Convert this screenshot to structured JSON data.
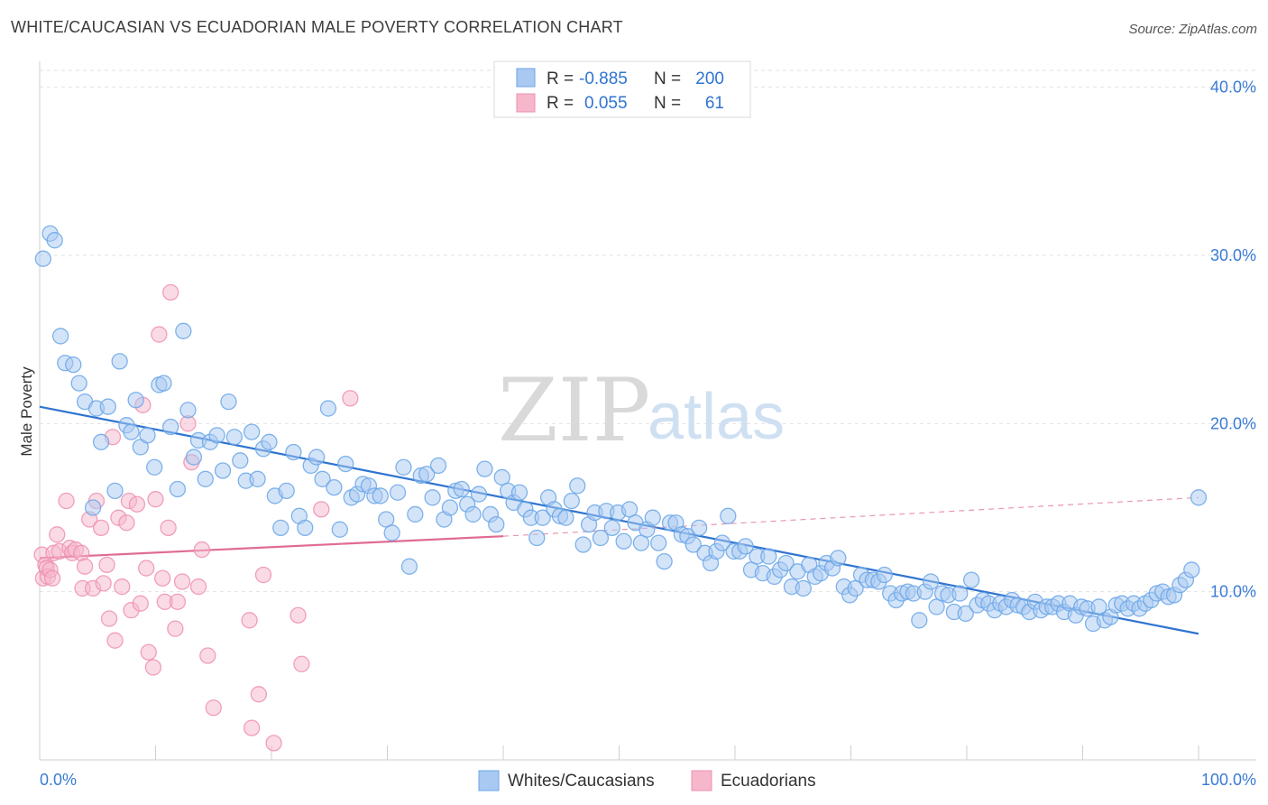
{
  "title": "WHITE/CAUCASIAN VS ECUADORIAN MALE POVERTY CORRELATION CHART",
  "source": "Source: ZipAtlas.com",
  "watermark": {
    "zip": "ZIP",
    "atlas": "atlas"
  },
  "legend_stats": [
    {
      "r_label": "R =",
      "r_value": "-0.885",
      "n_label": "N =",
      "n_value": "200",
      "color": "#a9c9f2"
    },
    {
      "r_label": "R =",
      "r_value": "0.055",
      "n_label": "N =",
      "n_value": "61",
      "color": "#f6b7cb"
    }
  ],
  "bottom_legend": [
    {
      "label": "Whites/Caucasians",
      "color": "#a9c9f2"
    },
    {
      "label": "Ecuadorians",
      "color": "#f6b7cb"
    }
  ],
  "chart_data": {
    "type": "scatter",
    "title": "WHITE/CAUCASIAN VS ECUADORIAN MALE POVERTY CORRELATION CHART",
    "xlabel": "",
    "ylabel": "Male Poverty",
    "xlim": [
      0,
      100
    ],
    "ylim": [
      0,
      41
    ],
    "x_tick_labels": [
      "0.0%",
      "100.0%"
    ],
    "y_ticks": [
      10,
      20,
      30,
      40
    ],
    "y_tick_labels": [
      "10.0%",
      "20.0%",
      "30.0%",
      "40.0%"
    ],
    "grid": true,
    "series": [
      {
        "name": "Whites/Caucasians",
        "color": "#6aa6e8",
        "fill": "#a9c9f2",
        "line_color": "#2f74d0",
        "trend": {
          "x": [
            0,
            100
          ],
          "y": [
            21.0,
            7.5
          ],
          "style": "solid"
        },
        "points": [
          [
            0.3,
            29.8
          ],
          [
            0.9,
            31.3
          ],
          [
            1.3,
            30.9
          ],
          [
            1.8,
            25.2
          ],
          [
            2.2,
            23.6
          ],
          [
            2.9,
            23.5
          ],
          [
            3.4,
            22.4
          ],
          [
            3.9,
            21.3
          ],
          [
            4.6,
            15.0
          ],
          [
            4.9,
            20.9
          ],
          [
            5.3,
            18.9
          ],
          [
            5.9,
            21.0
          ],
          [
            6.5,
            16.0
          ],
          [
            6.9,
            23.7
          ],
          [
            7.5,
            19.9
          ],
          [
            7.9,
            19.5
          ],
          [
            8.3,
            21.4
          ],
          [
            8.7,
            18.6
          ],
          [
            9.3,
            19.3
          ],
          [
            9.9,
            17.4
          ],
          [
            10.3,
            22.3
          ],
          [
            10.7,
            22.4
          ],
          [
            11.3,
            19.8
          ],
          [
            11.9,
            16.1
          ],
          [
            12.4,
            25.5
          ],
          [
            12.8,
            20.8
          ],
          [
            13.3,
            18.0
          ],
          [
            13.7,
            19.0
          ],
          [
            14.3,
            16.7
          ],
          [
            14.7,
            18.9
          ],
          [
            15.3,
            19.3
          ],
          [
            15.8,
            17.2
          ],
          [
            16.3,
            21.3
          ],
          [
            16.8,
            19.2
          ],
          [
            17.3,
            17.8
          ],
          [
            17.8,
            16.6
          ],
          [
            18.3,
            19.5
          ],
          [
            18.8,
            16.7
          ],
          [
            19.3,
            18.5
          ],
          [
            19.8,
            18.9
          ],
          [
            20.3,
            15.7
          ],
          [
            20.8,
            13.8
          ],
          [
            21.3,
            16.0
          ],
          [
            21.9,
            18.3
          ],
          [
            22.4,
            14.5
          ],
          [
            22.9,
            13.8
          ],
          [
            23.4,
            17.5
          ],
          [
            23.9,
            18.0
          ],
          [
            24.4,
            16.7
          ],
          [
            24.9,
            20.9
          ],
          [
            25.4,
            16.2
          ],
          [
            25.9,
            13.7
          ],
          [
            26.4,
            17.6
          ],
          [
            26.9,
            15.6
          ],
          [
            27.4,
            15.8
          ],
          [
            27.9,
            16.4
          ],
          [
            28.4,
            16.3
          ],
          [
            28.9,
            15.7
          ],
          [
            29.4,
            15.7
          ],
          [
            29.9,
            14.3
          ],
          [
            30.4,
            13.5
          ],
          [
            30.9,
            15.9
          ],
          [
            31.4,
            17.4
          ],
          [
            31.9,
            11.5
          ],
          [
            32.4,
            14.6
          ],
          [
            32.9,
            16.9
          ],
          [
            33.4,
            17.0
          ],
          [
            33.9,
            15.6
          ],
          [
            34.4,
            17.5
          ],
          [
            34.9,
            14.3
          ],
          [
            35.4,
            15.0
          ],
          [
            35.9,
            16.0
          ],
          [
            36.4,
            16.1
          ],
          [
            36.9,
            15.2
          ],
          [
            37.4,
            14.6
          ],
          [
            37.9,
            15.8
          ],
          [
            38.4,
            17.3
          ],
          [
            38.9,
            14.6
          ],
          [
            39.4,
            14.0
          ],
          [
            39.9,
            16.8
          ],
          [
            40.4,
            16.0
          ],
          [
            40.9,
            15.3
          ],
          [
            41.4,
            15.9
          ],
          [
            41.9,
            14.9
          ],
          [
            42.4,
            14.4
          ],
          [
            42.9,
            13.2
          ],
          [
            43.4,
            14.4
          ],
          [
            43.9,
            15.6
          ],
          [
            44.4,
            14.9
          ],
          [
            44.9,
            14.5
          ],
          [
            45.4,
            14.4
          ],
          [
            45.9,
            15.4
          ],
          [
            46.4,
            16.3
          ],
          [
            46.9,
            12.8
          ],
          [
            47.4,
            14.0
          ],
          [
            47.9,
            14.7
          ],
          [
            48.4,
            13.2
          ],
          [
            48.9,
            14.8
          ],
          [
            49.4,
            13.8
          ],
          [
            49.9,
            14.7
          ],
          [
            50.4,
            13.0
          ],
          [
            50.9,
            14.9
          ],
          [
            51.4,
            14.1
          ],
          [
            51.9,
            12.9
          ],
          [
            52.4,
            13.7
          ],
          [
            52.9,
            14.4
          ],
          [
            53.4,
            12.9
          ],
          [
            53.9,
            11.8
          ],
          [
            54.4,
            14.1
          ],
          [
            54.9,
            14.1
          ],
          [
            55.4,
            13.4
          ],
          [
            55.9,
            13.3
          ],
          [
            56.4,
            12.8
          ],
          [
            56.9,
            13.8
          ],
          [
            57.4,
            12.3
          ],
          [
            57.9,
            11.7
          ],
          [
            58.4,
            12.4
          ],
          [
            58.9,
            12.9
          ],
          [
            59.4,
            14.5
          ],
          [
            59.9,
            12.4
          ],
          [
            60.4,
            12.4
          ],
          [
            60.9,
            12.7
          ],
          [
            61.4,
            11.3
          ],
          [
            61.9,
            12.1
          ],
          [
            62.4,
            11.1
          ],
          [
            62.9,
            12.1
          ],
          [
            63.4,
            10.9
          ],
          [
            63.9,
            11.3
          ],
          [
            64.4,
            11.7
          ],
          [
            64.9,
            10.3
          ],
          [
            65.4,
            11.2
          ],
          [
            65.9,
            10.2
          ],
          [
            66.4,
            11.6
          ],
          [
            66.9,
            10.9
          ],
          [
            67.4,
            11.1
          ],
          [
            67.9,
            11.7
          ],
          [
            68.4,
            11.4
          ],
          [
            68.9,
            12.0
          ],
          [
            69.4,
            10.3
          ],
          [
            69.9,
            9.8
          ],
          [
            70.4,
            10.2
          ],
          [
            70.9,
            11.0
          ],
          [
            71.4,
            10.7
          ],
          [
            71.9,
            10.7
          ],
          [
            72.4,
            10.6
          ],
          [
            72.9,
            11.0
          ],
          [
            73.4,
            9.9
          ],
          [
            73.9,
            9.5
          ],
          [
            74.4,
            9.9
          ],
          [
            74.9,
            10.0
          ],
          [
            75.4,
            9.9
          ],
          [
            75.9,
            8.3
          ],
          [
            76.4,
            10.0
          ],
          [
            76.9,
            10.6
          ],
          [
            77.4,
            9.1
          ],
          [
            77.9,
            9.9
          ],
          [
            78.4,
            9.8
          ],
          [
            78.9,
            8.8
          ],
          [
            79.4,
            9.9
          ],
          [
            79.9,
            8.7
          ],
          [
            80.4,
            10.7
          ],
          [
            80.9,
            9.2
          ],
          [
            81.4,
            9.5
          ],
          [
            81.9,
            9.3
          ],
          [
            82.4,
            8.9
          ],
          [
            82.9,
            9.3
          ],
          [
            83.4,
            9.1
          ],
          [
            83.9,
            9.5
          ],
          [
            84.4,
            9.2
          ],
          [
            84.9,
            9.1
          ],
          [
            85.4,
            8.8
          ],
          [
            85.9,
            9.4
          ],
          [
            86.4,
            8.9
          ],
          [
            86.9,
            9.1
          ],
          [
            87.4,
            9.1
          ],
          [
            87.9,
            9.3
          ],
          [
            88.4,
            8.8
          ],
          [
            88.9,
            9.3
          ],
          [
            89.4,
            8.6
          ],
          [
            89.9,
            9.1
          ],
          [
            90.4,
            9.0
          ],
          [
            90.9,
            8.1
          ],
          [
            91.4,
            9.1
          ],
          [
            91.9,
            8.3
          ],
          [
            92.4,
            8.5
          ],
          [
            92.9,
            9.2
          ],
          [
            93.4,
            9.3
          ],
          [
            93.9,
            9.0
          ],
          [
            94.4,
            9.3
          ],
          [
            94.9,
            9.0
          ],
          [
            95.4,
            9.3
          ],
          [
            95.9,
            9.5
          ],
          [
            96.4,
            9.9
          ],
          [
            96.9,
            10.0
          ],
          [
            97.4,
            9.7
          ],
          [
            97.9,
            9.8
          ],
          [
            98.4,
            10.4
          ],
          [
            98.9,
            10.7
          ],
          [
            99.4,
            11.3
          ],
          [
            100.0,
            15.6
          ]
        ]
      },
      {
        "name": "Ecuadorians",
        "color": "#ef8fb0",
        "fill": "#f6b7cb",
        "line_color": "#e06b95",
        "trend": {
          "x": [
            0,
            40
          ],
          "y": [
            12.0,
            13.3
          ],
          "style": "solid",
          "extended_x": [
            40,
            100
          ],
          "extended_y": [
            13.3,
            15.6
          ],
          "extended_style": "dashed"
        },
        "points": [
          [
            0.2,
            12.2
          ],
          [
            0.3,
            10.8
          ],
          [
            0.5,
            11.6
          ],
          [
            0.6,
            11.4
          ],
          [
            0.7,
            10.9
          ],
          [
            0.9,
            11.3
          ],
          [
            1.1,
            10.8
          ],
          [
            1.2,
            12.3
          ],
          [
            1.5,
            13.4
          ],
          [
            1.7,
            12.4
          ],
          [
            2.3,
            15.4
          ],
          [
            2.6,
            12.6
          ],
          [
            2.8,
            12.3
          ],
          [
            3.1,
            12.5
          ],
          [
            3.6,
            12.3
          ],
          [
            3.7,
            10.2
          ],
          [
            3.9,
            11.5
          ],
          [
            4.3,
            14.3
          ],
          [
            4.6,
            10.2
          ],
          [
            4.9,
            15.4
          ],
          [
            5.3,
            13.8
          ],
          [
            5.5,
            10.5
          ],
          [
            5.8,
            11.6
          ],
          [
            6.0,
            8.4
          ],
          [
            6.3,
            19.2
          ],
          [
            6.5,
            7.1
          ],
          [
            6.8,
            14.4
          ],
          [
            7.1,
            10.3
          ],
          [
            7.5,
            14.1
          ],
          [
            7.7,
            15.4
          ],
          [
            7.9,
            8.9
          ],
          [
            8.4,
            15.2
          ],
          [
            8.7,
            9.3
          ],
          [
            8.9,
            21.1
          ],
          [
            9.2,
            11.4
          ],
          [
            9.4,
            6.4
          ],
          [
            9.8,
            5.5
          ],
          [
            10.0,
            15.5
          ],
          [
            10.3,
            25.3
          ],
          [
            10.6,
            10.8
          ],
          [
            10.8,
            9.4
          ],
          [
            11.1,
            13.8
          ],
          [
            11.3,
            27.8
          ],
          [
            11.7,
            7.8
          ],
          [
            11.9,
            9.4
          ],
          [
            12.3,
            10.6
          ],
          [
            12.8,
            20.0
          ],
          [
            13.1,
            17.7
          ],
          [
            13.7,
            10.3
          ],
          [
            14.0,
            12.5
          ],
          [
            14.5,
            6.2
          ],
          [
            15.0,
            3.1
          ],
          [
            18.1,
            8.3
          ],
          [
            18.3,
            1.9
          ],
          [
            18.9,
            3.9
          ],
          [
            19.3,
            11.0
          ],
          [
            20.2,
            1.0
          ],
          [
            22.3,
            8.6
          ],
          [
            22.6,
            5.7
          ],
          [
            24.3,
            14.9
          ],
          [
            26.8,
            21.5
          ]
        ]
      }
    ]
  }
}
